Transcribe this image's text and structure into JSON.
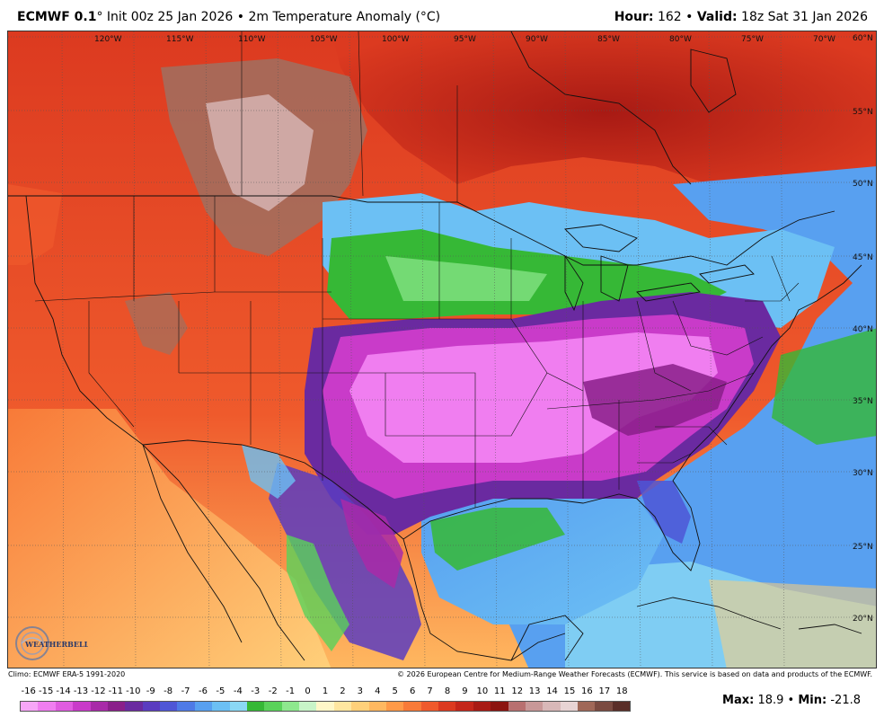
{
  "header": {
    "model": "ECMWF 0.1",
    "deg": "°",
    "init": "Init 00z 25 Jan 2026",
    "sep": "•",
    "product": "2m Temperature Anomaly (°C)",
    "hour_label": "Hour:",
    "hour_value": "162",
    "valid_label": "Valid:",
    "valid_value": "18z Sat 31 Jan 2026"
  },
  "map": {
    "longitudes": [
      "120°W",
      "115°W",
      "110°W",
      "105°W",
      "100°W",
      "95°W",
      "90°W",
      "85°W",
      "80°W",
      "75°W",
      "70°W"
    ],
    "latitudes": [
      "60°N",
      "55°N",
      "50°N",
      "45°N",
      "40°N",
      "35°N",
      "30°N",
      "25°N",
      "20°N"
    ]
  },
  "footer": {
    "climo": "Climo: ECMWF ERA-5 1991-2020",
    "copyright": "© 2026 European Centre for Medium-Range Weather Forecasts (ECMWF). This service is based on data and products of the ECMWF.",
    "logo_text": "WEATHERBELL"
  },
  "colorbar": {
    "labels": [
      "-16",
      "-15",
      "-14",
      "-13",
      "-12",
      "-11",
      "-10",
      "-9",
      "-8",
      "-7",
      "-6",
      "-5",
      "-4",
      "-3",
      "-2",
      "-1",
      "0",
      "1",
      "2",
      "3",
      "4",
      "5",
      "6",
      "7",
      "8",
      "9",
      "10",
      "11",
      "12",
      "13",
      "14",
      "15",
      "16",
      "17",
      "18"
    ],
    "colors": [
      "#f7a6f7",
      "#f07ef0",
      "#e05ce0",
      "#c93bc9",
      "#a82aa8",
      "#8a1f8a",
      "#6a2aa0",
      "#5a3cc0",
      "#4e56d6",
      "#4e7ae6",
      "#58a0f0",
      "#6cc0f4",
      "#8ad8f4",
      "#36b836",
      "#5ad25a",
      "#8ee88e",
      "#c8f4c8",
      "#fff7c8",
      "#ffe6a0",
      "#ffd07a",
      "#ffb860",
      "#ff9a48",
      "#f87a38",
      "#ef5a2c",
      "#dc3a20",
      "#c4261a",
      "#a81a14",
      "#8c1410",
      "#b87070",
      "#c89898",
      "#d8b8b8",
      "#e8d4d4",
      "#a06858",
      "#7a4a40",
      "#5a2e28"
    ]
  },
  "stats": {
    "max_label": "Max:",
    "max_value": "18.9",
    "min_label": "Min:",
    "min_value": "-21.8"
  }
}
